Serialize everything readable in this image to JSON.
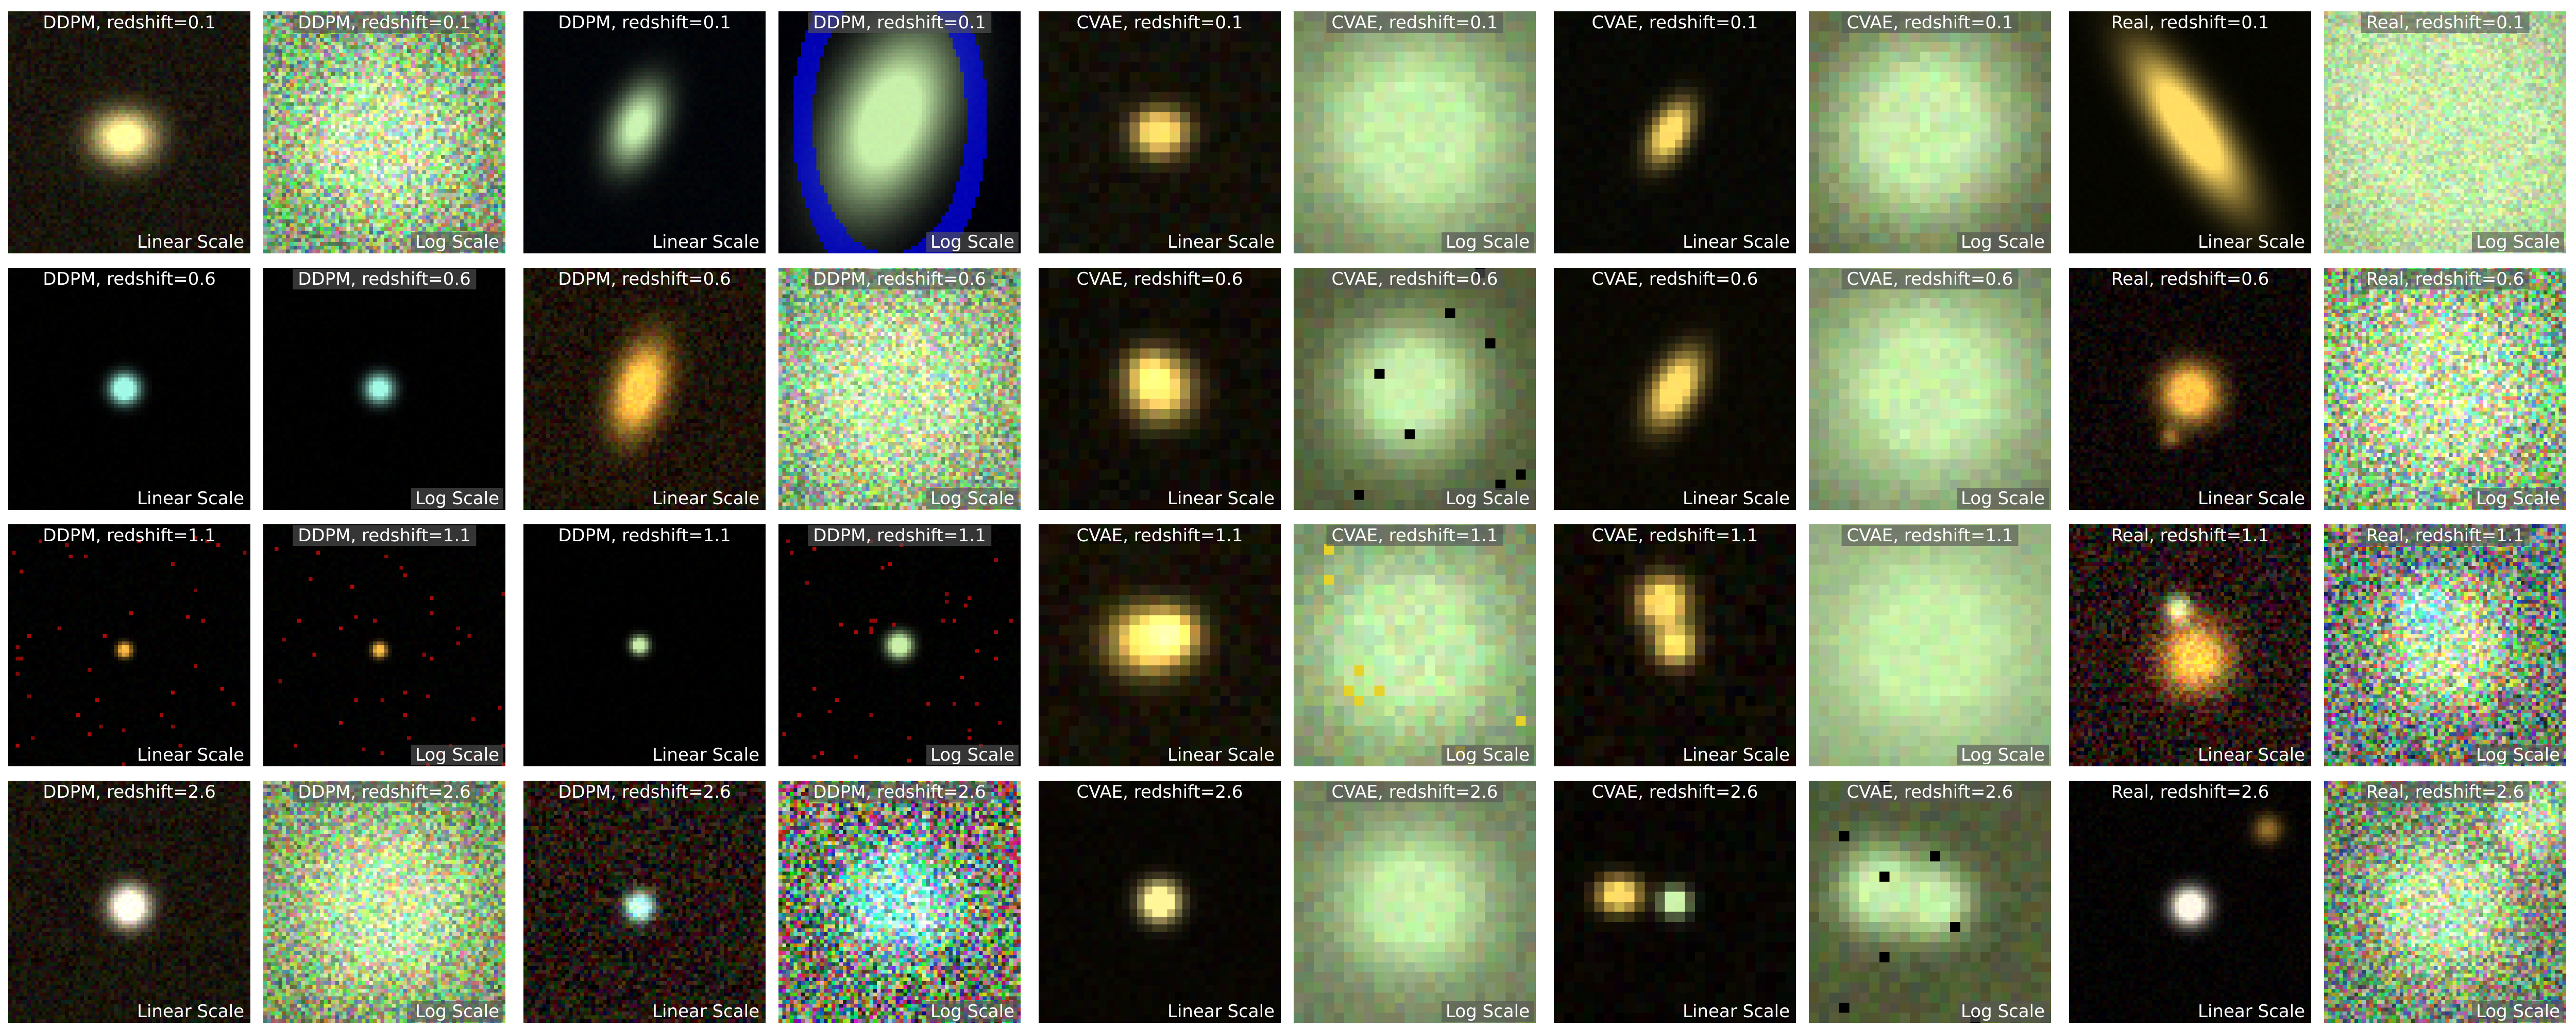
{
  "rows": [
    {
      "redshift": "0.1",
      "tiles": [
        {
          "title": "DDPM, redshift=0.1",
          "scale": "Linear Scale"
        },
        {
          "title": "DDPM, redshift=0.1",
          "scale": "Log Scale"
        },
        {
          "title": "DDPM, redshift=0.1",
          "scale": "Linear Scale"
        },
        {
          "title": "DDPM, redshift=0.1",
          "scale": "Log Scale"
        },
        {
          "title": "CVAE, redshift=0.1",
          "scale": "Linear Scale"
        },
        {
          "title": "CVAE, redshift=0.1",
          "scale": "Log Scale"
        },
        {
          "title": "CVAE, redshift=0.1",
          "scale": "Linear Scale"
        },
        {
          "title": "CVAE, redshift=0.1",
          "scale": "Log Scale"
        },
        {
          "title": "Real, redshift=0.1",
          "scale": "Linear Scale"
        },
        {
          "title": "Real, redshift=0.1",
          "scale": "Log Scale"
        }
      ]
    },
    {
      "redshift": "0.6",
      "tiles": [
        {
          "title": "DDPM, redshift=0.6",
          "scale": "Linear Scale"
        },
        {
          "title": "DDPM, redshift=0.6",
          "scale": "Log Scale"
        },
        {
          "title": "DDPM, redshift=0.6",
          "scale": "Linear Scale"
        },
        {
          "title": "DDPM, redshift=0.6",
          "scale": "Log Scale"
        },
        {
          "title": "CVAE, redshift=0.6",
          "scale": "Linear Scale"
        },
        {
          "title": "CVAE, redshift=0.6",
          "scale": "Log Scale"
        },
        {
          "title": "CVAE, redshift=0.6",
          "scale": "Linear Scale"
        },
        {
          "title": "CVAE, redshift=0.6",
          "scale": "Log Scale"
        },
        {
          "title": "Real, redshift=0.6",
          "scale": "Linear Scale"
        },
        {
          "title": "Real, redshift=0.6",
          "scale": "Log Scale"
        }
      ]
    },
    {
      "redshift": "1.1",
      "tiles": [
        {
          "title": "DDPM, redshift=1.1",
          "scale": "Linear Scale"
        },
        {
          "title": "DDPM, redshift=1.1",
          "scale": "Log Scale"
        },
        {
          "title": "DDPM, redshift=1.1",
          "scale": "Linear Scale"
        },
        {
          "title": "DDPM, redshift=1.1",
          "scale": "Log Scale"
        },
        {
          "title": "CVAE, redshift=1.1",
          "scale": "Linear Scale"
        },
        {
          "title": "CVAE, redshift=1.1",
          "scale": "Log Scale"
        },
        {
          "title": "CVAE, redshift=1.1",
          "scale": "Linear Scale"
        },
        {
          "title": "CVAE, redshift=1.1",
          "scale": "Log Scale"
        },
        {
          "title": "Real, redshift=1.1",
          "scale": "Linear Scale"
        },
        {
          "title": "Real, redshift=1.1",
          "scale": "Log Scale"
        }
      ]
    },
    {
      "redshift": "2.6",
      "tiles": [
        {
          "title": "DDPM, redshift=2.6",
          "scale": "Linear Scale"
        },
        {
          "title": "DDPM, redshift=2.6",
          "scale": "Log Scale"
        },
        {
          "title": "DDPM, redshift=2.6",
          "scale": "Linear Scale"
        },
        {
          "title": "DDPM, redshift=2.6",
          "scale": "Log Scale"
        },
        {
          "title": "CVAE, redshift=2.6",
          "scale": "Linear Scale"
        },
        {
          "title": "CVAE, redshift=2.6",
          "scale": "Log Scale"
        },
        {
          "title": "CVAE, redshift=2.6",
          "scale": "Linear Scale"
        },
        {
          "title": "CVAE, redshift=2.6",
          "scale": "Log Scale"
        },
        {
          "title": "Real, redshift=2.6",
          "scale": "Linear Scale"
        },
        {
          "title": "Real, redshift=2.6",
          "scale": "Log Scale"
        }
      ]
    }
  ],
  "colors": {
    "label_text": "#ffffff",
    "label_box": "#555555",
    "page_background": "#ffffff"
  }
}
